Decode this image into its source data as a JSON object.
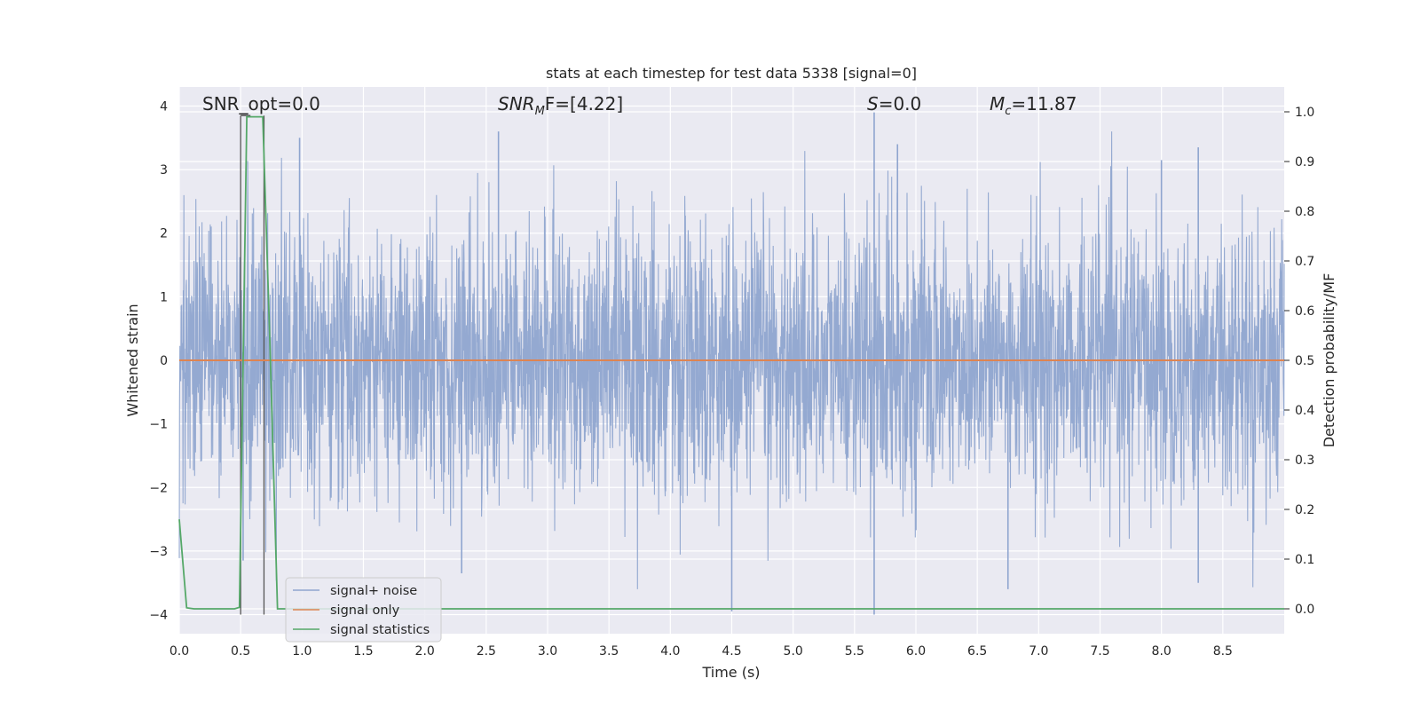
{
  "chart_data": {
    "type": "line",
    "title": "stats at each timestep for test data 5338 [signal=0]",
    "xlabel": "Time (s)",
    "ylabel": "Whitened strain",
    "ylabel_right": "Detection probability/MF",
    "xlim": [
      0.0,
      9.0
    ],
    "ylim": [
      -4.3,
      4.3
    ],
    "ylim_right": [
      -0.05,
      1.05
    ],
    "xticks": [
      "0.0",
      "0.5",
      "1.0",
      "1.5",
      "2.0",
      "2.5",
      "3.0",
      "3.5",
      "4.0",
      "4.5",
      "5.0",
      "5.5",
      "6.0",
      "6.5",
      "7.0",
      "7.5",
      "8.0",
      "8.5"
    ],
    "yticks": [
      "−4",
      "−3",
      "−2",
      "−1",
      "0",
      "1",
      "2",
      "3",
      "4"
    ],
    "yticks_right": [
      "0.0",
      "0.1",
      "0.2",
      "0.3",
      "0.4",
      "0.5",
      "0.6",
      "0.7",
      "0.8",
      "0.9",
      "1.0"
    ],
    "grid": true,
    "legend_position": "lower-left",
    "annotations": {
      "snr_opt": "SNR_opt=0.0",
      "snr_mf_main": "SNR",
      "snr_mf_sub": "M",
      "snr_mf_rest": "F=[4.22]",
      "s_main": "S",
      "s_rest": "=0.0",
      "mc_main": "M",
      "mc_sub": "c",
      "mc_rest": "=11.87"
    },
    "series": [
      {
        "name": "signal+ noise",
        "color": "#8fa5cf",
        "style": "dense-noise",
        "approx_std": 1.0,
        "approx_range": [
          -4.0,
          4.0
        ],
        "peaks": [
          {
            "x": 0.52,
            "y": -3.15
          },
          {
            "x": 0.98,
            "y": 3.5
          },
          {
            "x": 2.6,
            "y": 3.6
          },
          {
            "x": 2.3,
            "y": -3.35
          },
          {
            "x": 4.5,
            "y": -3.95
          },
          {
            "x": 5.66,
            "y": 3.9
          },
          {
            "x": 5.66,
            "y": -4.0
          },
          {
            "x": 5.85,
            "y": 3.4
          },
          {
            "x": 6.75,
            "y": -3.6
          },
          {
            "x": 8.3,
            "y": 3.35
          },
          {
            "x": 8.3,
            "y": -3.5
          },
          {
            "x": 8.0,
            "y": 3.15
          }
        ]
      },
      {
        "name": "signal only",
        "color": "#dd8452",
        "x": [
          0.0,
          9.0
        ],
        "y": [
          0.0,
          0.0
        ]
      },
      {
        "name": "signal statistics",
        "color": "#55a868",
        "axis": "right",
        "x": [
          0.0,
          0.06,
          0.12,
          0.3,
          0.45,
          0.49,
          0.55,
          0.68,
          0.74,
          0.8,
          1.0,
          5.0,
          9.0
        ],
        "y": [
          0.18,
          0.002,
          0.0,
          0.0,
          0.0,
          0.003,
          0.99,
          0.99,
          0.52,
          0.0,
          0.0,
          0.0,
          0.0
        ]
      }
    ],
    "markers": {
      "color": "#555555",
      "vlines": [
        0.5,
        0.69
      ],
      "bracket_y": 3.85,
      "bracket_x": [
        0.5,
        0.58
      ]
    }
  }
}
